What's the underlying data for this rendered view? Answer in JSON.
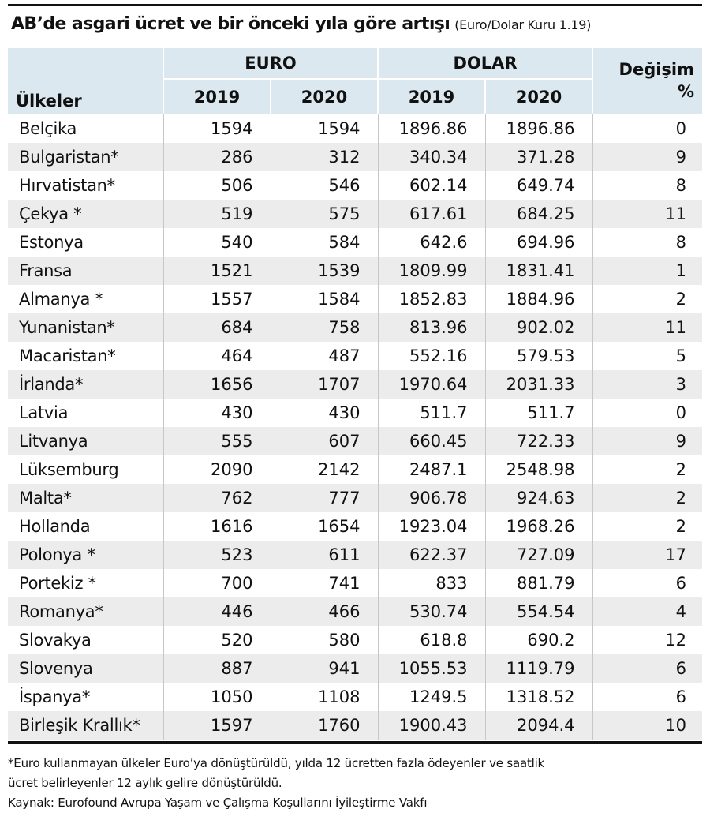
{
  "title": {
    "main": "AB’de asgari ücret ve bir önceki yıla göre artışı",
    "sub": "(Euro/Dolar Kuru 1.19)"
  },
  "table": {
    "country_header": "Ülkeler",
    "euro_header": "EURO",
    "dolar_header": "DOLAR",
    "change_header_line1": "Değişim",
    "change_header_line2": "%",
    "years": [
      "2019",
      "2020",
      "2019",
      "2020"
    ],
    "rows": [
      {
        "country": "Belçika",
        "euro_2019": "1594",
        "euro_2020": "1594",
        "dolar_2019": "1896.86",
        "dolar_2020": "1896.86",
        "change": "0"
      },
      {
        "country": "Bulgaristan*",
        "euro_2019": "286",
        "euro_2020": "312",
        "dolar_2019": "340.34",
        "dolar_2020": "371.28",
        "change": "9"
      },
      {
        "country": "Hırvatistan*",
        "euro_2019": "506",
        "euro_2020": "546",
        "dolar_2019": "602.14",
        "dolar_2020": "649.74",
        "change": "8"
      },
      {
        "country": "Çekya *",
        "euro_2019": "519",
        "euro_2020": "575",
        "dolar_2019": "617.61",
        "dolar_2020": "684.25",
        "change": "11"
      },
      {
        "country": "Estonya",
        "euro_2019": "540",
        "euro_2020": "584",
        "dolar_2019": "642.6",
        "dolar_2020": "694.96",
        "change": "8"
      },
      {
        "country": "Fransa",
        "euro_2019": "1521",
        "euro_2020": "1539",
        "dolar_2019": "1809.99",
        "dolar_2020": "1831.41",
        "change": "1"
      },
      {
        "country": "Almanya *",
        "euro_2019": "1557",
        "euro_2020": "1584",
        "dolar_2019": "1852.83",
        "dolar_2020": "1884.96",
        "change": "2"
      },
      {
        "country": "Yunanistan*",
        "euro_2019": "684",
        "euro_2020": "758",
        "dolar_2019": "813.96",
        "dolar_2020": "902.02",
        "change": "11"
      },
      {
        "country": "Macaristan*",
        "euro_2019": "464",
        "euro_2020": "487",
        "dolar_2019": "552.16",
        "dolar_2020": "579.53",
        "change": "5"
      },
      {
        "country": "İrlanda*",
        "euro_2019": "1656",
        "euro_2020": "1707",
        "dolar_2019": "1970.64",
        "dolar_2020": "2031.33",
        "change": "3"
      },
      {
        "country": "Latvia",
        "euro_2019": "430",
        "euro_2020": "430",
        "dolar_2019": "511.7",
        "dolar_2020": "511.7",
        "change": "0"
      },
      {
        "country": "Litvanya",
        "euro_2019": "555",
        "euro_2020": "607",
        "dolar_2019": "660.45",
        "dolar_2020": "722.33",
        "change": "9"
      },
      {
        "country": "Lüksemburg",
        "euro_2019": "2090",
        "euro_2020": "2142",
        "dolar_2019": "2487.1",
        "dolar_2020": "2548.98",
        "change": "2"
      },
      {
        "country": "Malta*",
        "euro_2019": "762",
        "euro_2020": "777",
        "dolar_2019": "906.78",
        "dolar_2020": "924.63",
        "change": "2"
      },
      {
        "country": "Hollanda",
        "euro_2019": "1616",
        "euro_2020": "1654",
        "dolar_2019": "1923.04",
        "dolar_2020": "1968.26",
        "change": "2"
      },
      {
        "country": "Polonya *",
        "euro_2019": "523",
        "euro_2020": "611",
        "dolar_2019": "622.37",
        "dolar_2020": "727.09",
        "change": "17"
      },
      {
        "country": "Portekiz *",
        "euro_2019": "700",
        "euro_2020": "741",
        "dolar_2019": "833",
        "dolar_2020": "881.79",
        "change": "6"
      },
      {
        "country": "Romanya*",
        "euro_2019": "446",
        "euro_2020": "466",
        "dolar_2019": "530.74",
        "dolar_2020": "554.54",
        "change": "4"
      },
      {
        "country": "Slovakya",
        "euro_2019": "520",
        "euro_2020": "580",
        "dolar_2019": "618.8",
        "dolar_2020": "690.2",
        "change": "12"
      },
      {
        "country": "Slovenya",
        "euro_2019": "887",
        "euro_2020": "941",
        "dolar_2019": "1055.53",
        "dolar_2020": "1119.79",
        "change": "6"
      },
      {
        "country": "İspanya*",
        "euro_2019": "1050",
        "euro_2020": "1108",
        "dolar_2019": "1249.5",
        "dolar_2020": "1318.52",
        "change": "6"
      },
      {
        "country": "Birleşik Krallık*",
        "euro_2019": "1597",
        "euro_2020": "1760",
        "dolar_2019": "1900.43",
        "dolar_2020": "2094.4",
        "change": "10"
      }
    ]
  },
  "footnotes": {
    "line1": "*Euro kullanmayan ülkeler Euro’ya dönüştürüldü, yılda 12 ücretten fazla ödeyenler ve saatlik",
    "line2": "ücret belirleyenler 12 aylık gelire dönüştürüldü.",
    "line3": "Kaynak: Eurofound Avrupa Yaşam ve Çalışma Koşullarını İyileştirme Vakfı"
  },
  "colors": {
    "header_background": "#dbe8ef",
    "stripe_background": "#ececec",
    "rule": "#111111"
  }
}
